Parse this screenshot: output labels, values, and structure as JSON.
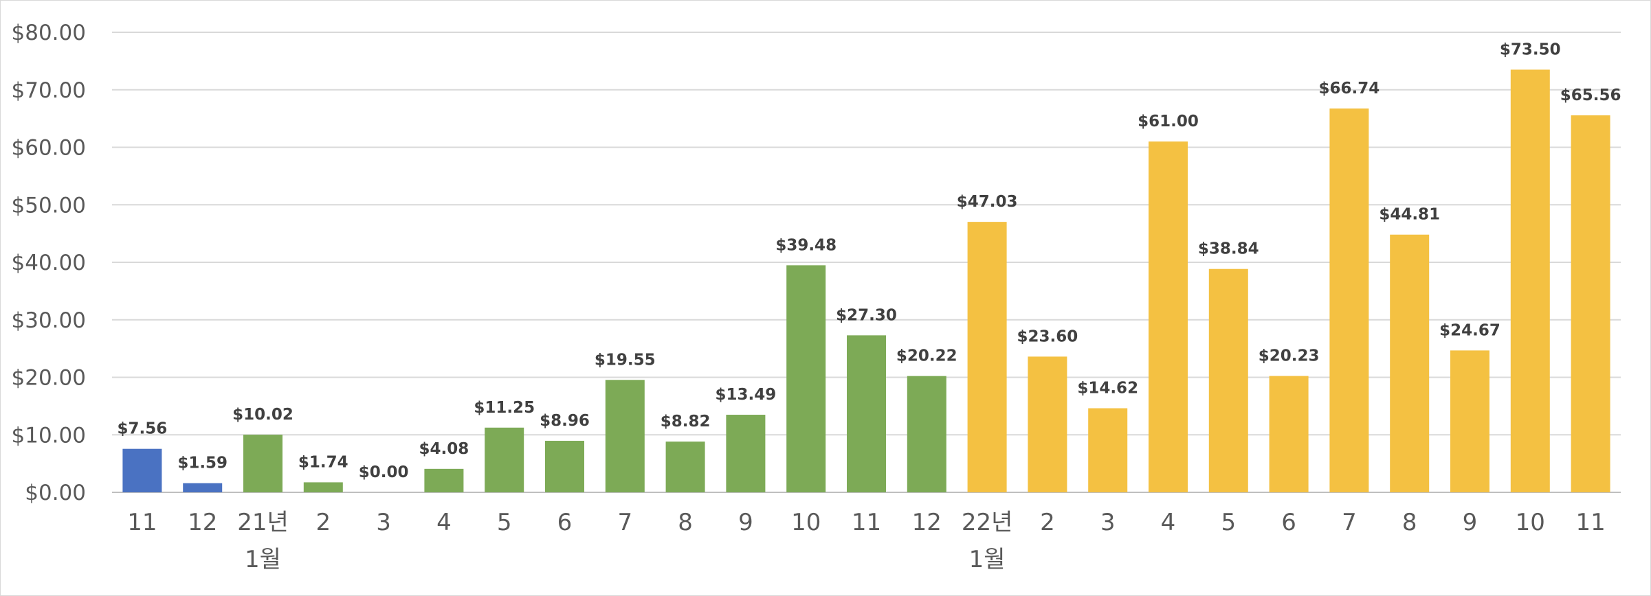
{
  "chart_data": {
    "type": "bar",
    "categories": [
      "11",
      "12",
      "21년\n1월",
      "2",
      "3",
      "4",
      "5",
      "6",
      "7",
      "8",
      "9",
      "10",
      "11",
      "12",
      "22년\n1월",
      "2",
      "3",
      "4",
      "5",
      "6",
      "7",
      "8",
      "9",
      "10",
      "11"
    ],
    "values": [
      7.56,
      1.59,
      10.02,
      1.74,
      0.0,
      4.08,
      11.25,
      8.96,
      19.55,
      8.82,
      13.49,
      39.48,
      27.3,
      20.22,
      47.03,
      23.6,
      14.62,
      61.0,
      38.84,
      20.23,
      66.74,
      44.81,
      24.67,
      73.5,
      65.56
    ],
    "data_labels": [
      "$7.56",
      "$1.59",
      "$10.02",
      "$1.74",
      "$0.00",
      "$4.08",
      "$11.25",
      "$8.96",
      "$19.55",
      "$8.82",
      "$13.49",
      "$39.48",
      "$27.30",
      "$20.22",
      "$47.03",
      "$23.60",
      "$14.62",
      "$61.00",
      "$38.84",
      "$20.23",
      "$66.74",
      "$44.81",
      "$24.67",
      "$73.50",
      "$65.56"
    ],
    "year_groups": [
      "2020",
      "2020",
      "2021",
      "2021",
      "2021",
      "2021",
      "2021",
      "2021",
      "2021",
      "2021",
      "2021",
      "2021",
      "2021",
      "2021",
      "2022",
      "2022",
      "2022",
      "2022",
      "2022",
      "2022",
      "2022",
      "2022",
      "2022",
      "2022",
      "2022"
    ],
    "group_colors": {
      "2020": "#4472C4",
      "2021": "#70AD47",
      "2022": "#FFC000"
    },
    "display_colors": {
      "2020": "#4a72c2",
      "2021": "#7daa56",
      "2022": "#f4c142"
    },
    "y_tick_values": [
      0,
      10,
      20,
      30,
      40,
      50,
      60,
      70,
      80
    ],
    "y_tick_labels": [
      "$0.00",
      "$10.00",
      "$20.00",
      "$30.00",
      "$40.00",
      "$50.00",
      "$60.00",
      "$70.00",
      "$80.00"
    ],
    "ylim": [
      0,
      80
    ],
    "title": "",
    "xlabel": "",
    "ylabel": "",
    "grid": true,
    "legend": "none"
  }
}
